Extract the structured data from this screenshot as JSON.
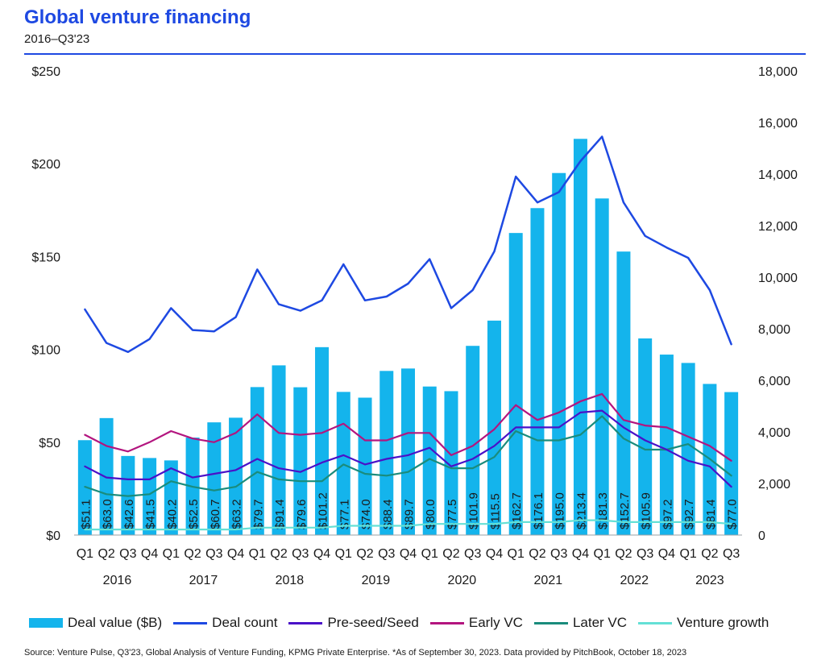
{
  "header": {
    "title": "Global venture financing",
    "subtitle": "2016–Q3'23"
  },
  "footer": {
    "source": "Source: Venture Pulse, Q3'23, Global Analysis of Venture Funding, KPMG Private Enterprise. *As of September 30, 2023. Data provided by PitchBook, October 18, 2023"
  },
  "colors": {
    "bar": "#14b4ec",
    "deal_count": "#1e49e2",
    "pre_seed": "#4a11c8",
    "early_vc": "#b3157f",
    "later_vc": "#1a8c7c",
    "venture_growth": "#64e0d6",
    "accent": "#1e49e2"
  },
  "chart_data": {
    "type": "bar",
    "categories": [
      "Q1",
      "Q2",
      "Q3",
      "Q4",
      "Q1",
      "Q2",
      "Q3",
      "Q4",
      "Q1",
      "Q2",
      "Q3",
      "Q4",
      "Q1",
      "Q2",
      "Q3",
      "Q4",
      "Q1",
      "Q2",
      "Q3",
      "Q4",
      "Q1",
      "Q2",
      "Q3",
      "Q4",
      "Q1",
      "Q2",
      "Q3",
      "Q4",
      "Q1",
      "Q2",
      "Q3"
    ],
    "years": [
      "2016",
      "2017",
      "2018",
      "2019",
      "2020",
      "2021",
      "2022",
      "2023"
    ],
    "bar_labels": [
      "$51.1",
      "$63.0",
      "$42.6",
      "$41.5",
      "$40.2",
      "$52.5",
      "$60.7",
      "$63.2",
      "$79.7",
      "$91.4",
      "$79.6",
      "$101.2",
      "$77.1",
      "$74.0",
      "$88.4",
      "$89.7",
      "$80.0",
      "$77.5",
      "$101.9",
      "$115.5",
      "$162.7",
      "$176.1",
      "$195.0",
      "$213.4",
      "$181.3",
      "$152.7",
      "$105.9",
      "$97.2",
      "$92.7",
      "$81.4",
      "$77.0"
    ],
    "y_left": {
      "ticks": [
        "$0",
        "$50",
        "$100",
        "$150",
        "$200",
        "$250"
      ],
      "range": [
        0,
        250
      ]
    },
    "y_right": {
      "ticks": [
        "0",
        "2,000",
        "4,000",
        "6,000",
        "8,000",
        "10,000",
        "12,000",
        "14,000",
        "16,000",
        "18,000"
      ],
      "range": [
        0,
        18000
      ]
    },
    "grid": false,
    "legend_position": "bottom",
    "series": [
      {
        "name": "Deal value ($B)",
        "kind": "bar",
        "axis": "left",
        "values": [
          51.1,
          63.0,
          42.6,
          41.5,
          40.2,
          52.5,
          60.7,
          63.2,
          79.7,
          91.4,
          79.6,
          101.2,
          77.1,
          74.0,
          88.4,
          89.7,
          80.0,
          77.5,
          101.9,
          115.5,
          162.7,
          176.1,
          195.0,
          213.4,
          181.3,
          152.7,
          105.9,
          97.2,
          92.7,
          81.4,
          77.0
        ]
      },
      {
        "name": "Deal count",
        "kind": "line",
        "axis": "right",
        "values": [
          8750,
          7450,
          7100,
          7600,
          8800,
          7950,
          7900,
          8450,
          10300,
          8950,
          8700,
          9100,
          10500,
          9100,
          9250,
          9750,
          10700,
          8800,
          9500,
          11000,
          13900,
          12900,
          13300,
          14500,
          15450,
          12900,
          11600,
          11150,
          10750,
          9500,
          7400
        ]
      },
      {
        "name": "Pre-seed/Seed",
        "kind": "line",
        "axis": "left",
        "values": [
          37,
          31,
          30,
          30,
          36,
          31,
          33,
          35,
          41,
          36,
          34,
          39,
          43,
          38,
          41,
          43,
          47,
          37,
          41,
          48,
          58,
          58,
          58,
          66,
          67,
          58,
          51,
          46,
          40,
          37,
          26
        ]
      },
      {
        "name": "Early VC",
        "kind": "line",
        "axis": "left",
        "values": [
          54,
          48,
          45,
          50,
          56,
          52,
          50,
          55,
          65,
          55,
          54,
          55,
          60,
          51,
          51,
          55,
          55,
          43,
          48,
          57,
          70,
          62,
          66,
          72,
          76,
          62,
          59,
          58,
          53,
          48,
          40
        ]
      },
      {
        "name": "Later VC",
        "kind": "line",
        "axis": "left",
        "values": [
          26,
          22,
          21,
          22,
          29,
          26,
          24,
          26,
          34,
          30,
          29,
          29,
          38,
          33,
          32,
          34,
          41,
          36,
          36,
          42,
          56,
          51,
          51,
          54,
          64,
          52,
          46,
          46,
          49,
          41,
          32
        ]
      },
      {
        "name": "Venture growth",
        "kind": "line",
        "axis": "left",
        "values": [
          3,
          3,
          3,
          3,
          3,
          3,
          3,
          3,
          4,
          4,
          4,
          4,
          5,
          5,
          5,
          5,
          6,
          6,
          6,
          6,
          7,
          7,
          7,
          8,
          8,
          7,
          7,
          7,
          7,
          7,
          6
        ]
      }
    ]
  }
}
